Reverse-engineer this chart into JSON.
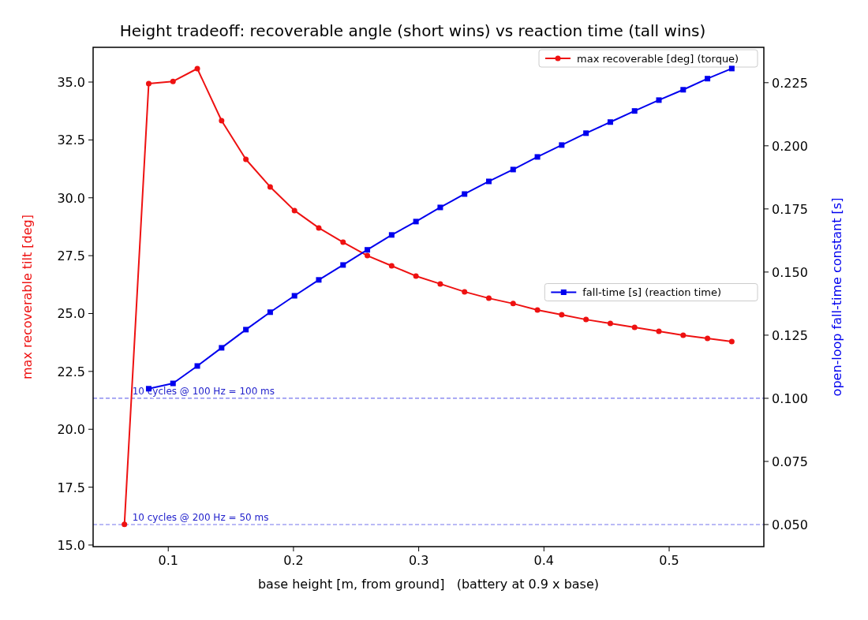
{
  "chart_data": {
    "type": "line",
    "title": "Height tradeoff: recoverable angle (short wins) vs reaction time (tall wins)",
    "xlabel": "base height [m, from ground]   (battery at 0.9 x base)",
    "ylabel": "max recoverable tilt [deg]",
    "y2label": "open-loop fall-time constant [s]",
    "x": [
      0.065,
      0.0844,
      0.1038,
      0.1232,
      0.1426,
      0.162,
      0.1814,
      0.2008,
      0.2202,
      0.2396,
      0.259,
      0.2784,
      0.2978,
      0.3172,
      0.3366,
      0.356,
      0.3754,
      0.3948,
      0.4142,
      0.4336,
      0.453,
      0.4724,
      0.4918,
      0.5112,
      0.5306,
      0.55
    ],
    "series": [
      {
        "name": "max recoverable [deg] (torque)",
        "color": "#ee1111",
        "marker": "circle",
        "values": [
          15.89,
          34.93,
          35.03,
          35.58,
          33.33,
          31.66,
          30.47,
          29.45,
          28.7,
          28.08,
          27.5,
          27.06,
          26.62,
          26.28,
          25.94,
          25.66,
          25.43,
          25.15,
          24.95,
          24.74,
          24.57,
          24.4,
          24.23,
          24.06,
          23.93,
          23.79
        ]
      },
      {
        "name": "fall-time [s] (reaction time)",
        "color": "#0000ee",
        "marker": "square",
        "axis": "y2",
        "values": [
          null,
          0.1038,
          0.1059,
          0.1128,
          0.12,
          0.1272,
          0.1341,
          0.1406,
          0.1469,
          0.1528,
          0.1588,
          0.1647,
          0.17,
          0.1756,
          0.1809,
          0.1859,
          0.1906,
          0.1956,
          0.2003,
          0.205,
          0.2094,
          0.2138,
          0.2181,
          0.2222,
          0.2266,
          0.2306
        ]
      }
    ],
    "xlim": [
      0.04,
      0.5756
    ],
    "xticks": [
      0.1,
      0.2,
      0.3,
      0.4,
      0.5
    ],
    "ylim": [
      14.93,
      36.5
    ],
    "yticks": [
      {
        "value": 15,
        "label": "15.0"
      },
      {
        "value": 17.5,
        "label": "17.5"
      },
      {
        "value": 20,
        "label": "20.0"
      },
      {
        "value": 22.5,
        "label": "22.5"
      },
      {
        "value": 25,
        "label": "25.0"
      },
      {
        "value": 27.5,
        "label": "27.5"
      },
      {
        "value": 30,
        "label": "30.0"
      },
      {
        "value": 32.5,
        "label": "32.5"
      },
      {
        "value": 35,
        "label": "35.0"
      }
    ],
    "y2lim": [
      0.04125,
      0.239
    ],
    "y2ticks": [
      {
        "value": 0.05,
        "label": "0.050"
      },
      {
        "value": 0.075,
        "label": "0.075"
      },
      {
        "value": 0.1,
        "label": "0.100"
      },
      {
        "value": 0.125,
        "label": "0.125"
      },
      {
        "value": 0.15,
        "label": "0.150"
      },
      {
        "value": 0.175,
        "label": "0.175"
      },
      {
        "value": 0.2,
        "label": "0.200"
      },
      {
        "value": 0.225,
        "label": "0.225"
      }
    ],
    "ref_lines": [
      {
        "axis": "y2",
        "value": 0.1,
        "label": "10 cycles @ 100 Hz = 100 ms",
        "color": "#7777ee",
        "line_style": "dashed"
      },
      {
        "axis": "y2",
        "value": 0.05,
        "label": "10 cycles @ 200 Hz = 50 ms",
        "color": "#7777ee",
        "line_style": "dashed"
      }
    ],
    "legend": "top right",
    "grid": false
  }
}
